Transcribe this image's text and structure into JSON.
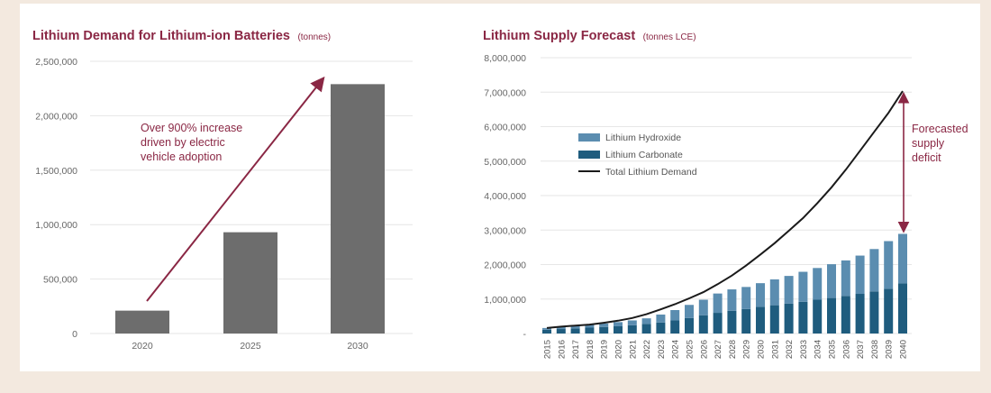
{
  "colors": {
    "background": "#f3e9df",
    "panel": "#ffffff",
    "title": "#8a2744",
    "bar_gray": "#6d6d6d",
    "hydroxide": "#5b8db0",
    "carbonate": "#1f5c7e",
    "demand_line": "#1a1a1a",
    "annotation": "#8a2744",
    "grid": "#e6e6e6"
  },
  "chart_data": [
    {
      "type": "bar",
      "title": "Lithium Demand for Lithium-ion Batteries",
      "unit": "(tonnes)",
      "categories": [
        "2020",
        "2025",
        "2030"
      ],
      "values": [
        210000,
        930000,
        2290000
      ],
      "ylim": [
        0,
        2500000
      ],
      "yticks": [
        0,
        500000,
        1000000,
        1500000,
        2000000,
        2500000
      ],
      "ytick_labels": [
        "0",
        "500,000",
        "1,000,000",
        "1,500,000",
        "2,000,000",
        "2,500,000"
      ],
      "annotation": [
        "Over 900% increase",
        "driven by electric",
        "vehicle adoption"
      ],
      "grid": true
    },
    {
      "type": "bar",
      "stacked": true,
      "title": "Lithium Supply Forecast",
      "unit": "(tonnes LCE)",
      "categories": [
        "2015",
        "2016",
        "2017",
        "2018",
        "2019",
        "2020",
        "2021",
        "2022",
        "2023",
        "2024",
        "2025",
        "2026",
        "2027",
        "2028",
        "2029",
        "2030",
        "2031",
        "2032",
        "2033",
        "2034",
        "2035",
        "2036",
        "2037",
        "2038",
        "2039",
        "2040"
      ],
      "series": [
        {
          "name": "Lithium Carbonate",
          "values": [
            110000,
            130000,
            150000,
            170000,
            190000,
            210000,
            240000,
            280000,
            320000,
            380000,
            450000,
            530000,
            600000,
            660000,
            710000,
            770000,
            820000,
            870000,
            920000,
            980000,
            1030000,
            1090000,
            1150000,
            1220000,
            1300000,
            1450000
          ]
        },
        {
          "name": "Lithium Hydroxide",
          "values": [
            50000,
            60000,
            70000,
            80000,
            100000,
            120000,
            140000,
            160000,
            230000,
            300000,
            380000,
            450000,
            560000,
            620000,
            640000,
            690000,
            750000,
            800000,
            870000,
            920000,
            980000,
            1030000,
            1110000,
            1230000,
            1380000,
            1440000
          ]
        },
        {
          "name": "Total Lithium Demand",
          "type": "line",
          "values": [
            160000,
            200000,
            230000,
            260000,
            310000,
            370000,
            450000,
            560000,
            700000,
            850000,
            1020000,
            1200000,
            1430000,
            1680000,
            1970000,
            2290000,
            2620000,
            2980000,
            3350000,
            3780000,
            4240000,
            4750000,
            5300000,
            5850000,
            6400000,
            7030000
          ]
        }
      ],
      "ylim": [
        0,
        8000000
      ],
      "yticks": [
        0,
        1000000,
        2000000,
        3000000,
        4000000,
        5000000,
        6000000,
        7000000,
        8000000
      ],
      "ytick_labels": [
        "-",
        "1,000,000",
        "2,000,000",
        "3,000,000",
        "4,000,000",
        "5,000,000",
        "6,000,000",
        "7,000,000",
        "8,000,000"
      ],
      "legend": [
        "Lithium Hydroxide",
        "Lithium Carbonate",
        "Total Lithium Demand"
      ],
      "legend_position": "top-left",
      "annotation": [
        "Forecasted",
        "supply",
        "deficit"
      ],
      "grid": true
    }
  ]
}
